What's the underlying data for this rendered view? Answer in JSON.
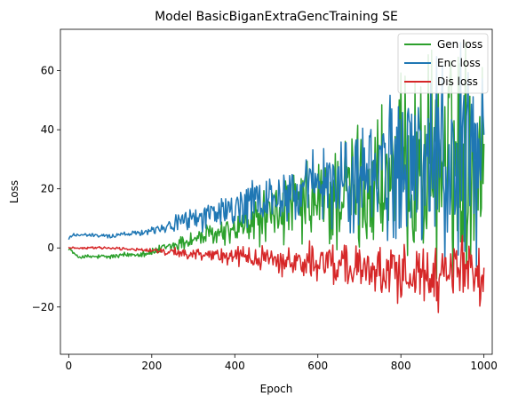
{
  "chart_data": {
    "type": "line",
    "title": "Model BasicBiganExtraGencTraining SE",
    "xlabel": "Epoch",
    "ylabel": "Loss",
    "xlim": [
      -20,
      1020
    ],
    "ylim": [
      -36,
      74
    ],
    "xticks": [
      0,
      200,
      400,
      600,
      800,
      1000
    ],
    "yticks": [
      -20,
      0,
      20,
      40,
      60
    ],
    "grid": false,
    "legend_position": "top-right",
    "series": [
      {
        "name": "Gen loss",
        "color": "#2ca02c",
        "note_style": "noisy oscillation around a slowly rising trend",
        "keyframes": [
          {
            "epoch": 0,
            "center": 0,
            "amp": 0.5
          },
          {
            "epoch": 20,
            "center": -3,
            "amp": 0.5
          },
          {
            "epoch": 100,
            "center": -3,
            "amp": 0.7
          },
          {
            "epoch": 200,
            "center": -1.5,
            "amp": 1.0
          },
          {
            "epoch": 300,
            "center": 3,
            "amp": 2.5
          },
          {
            "epoch": 400,
            "center": 6,
            "amp": 4
          },
          {
            "epoch": 500,
            "center": 12,
            "amp": 8
          },
          {
            "epoch": 600,
            "center": 15,
            "amp": 12
          },
          {
            "epoch": 700,
            "center": 20,
            "amp": 17
          },
          {
            "epoch": 800,
            "center": 25,
            "amp": 22
          },
          {
            "epoch": 900,
            "center": 30,
            "amp": 28
          },
          {
            "epoch": 1000,
            "center": 35,
            "amp": 30
          }
        ]
      },
      {
        "name": "Enc loss",
        "color": "#1f77b4",
        "keyframes": [
          {
            "epoch": 0,
            "center": 3,
            "amp": 0.5
          },
          {
            "epoch": 10,
            "center": 4.5,
            "amp": 0.5
          },
          {
            "epoch": 100,
            "center": 4.0,
            "amp": 0.5
          },
          {
            "epoch": 200,
            "center": 6,
            "amp": 1.0
          },
          {
            "epoch": 300,
            "center": 10,
            "amp": 3
          },
          {
            "epoch": 400,
            "center": 13,
            "amp": 5
          },
          {
            "epoch": 500,
            "center": 17,
            "amp": 7
          },
          {
            "epoch": 600,
            "center": 20,
            "amp": 10
          },
          {
            "epoch": 700,
            "center": 24,
            "amp": 14
          },
          {
            "epoch": 800,
            "center": 27,
            "amp": 20
          },
          {
            "epoch": 900,
            "center": 30,
            "amp": 26
          },
          {
            "epoch": 1000,
            "center": 30,
            "amp": 28
          }
        ]
      },
      {
        "name": "Dis loss",
        "color": "#d62728",
        "keyframes": [
          {
            "epoch": 0,
            "center": 0,
            "amp": 0.3
          },
          {
            "epoch": 100,
            "center": 0,
            "amp": 0.3
          },
          {
            "epoch": 200,
            "center": -0.8,
            "amp": 0.5
          },
          {
            "epoch": 300,
            "center": -2,
            "amp": 1.5
          },
          {
            "epoch": 400,
            "center": -3,
            "amp": 2.5
          },
          {
            "epoch": 500,
            "center": -4,
            "amp": 3.5
          },
          {
            "epoch": 600,
            "center": -5,
            "amp": 5
          },
          {
            "epoch": 700,
            "center": -6,
            "amp": 6
          },
          {
            "epoch": 800,
            "center": -8,
            "amp": 8
          },
          {
            "epoch": 900,
            "center": -10,
            "amp": 9
          },
          {
            "epoch": 1000,
            "center": -10,
            "amp": 10
          }
        ]
      }
    ]
  }
}
